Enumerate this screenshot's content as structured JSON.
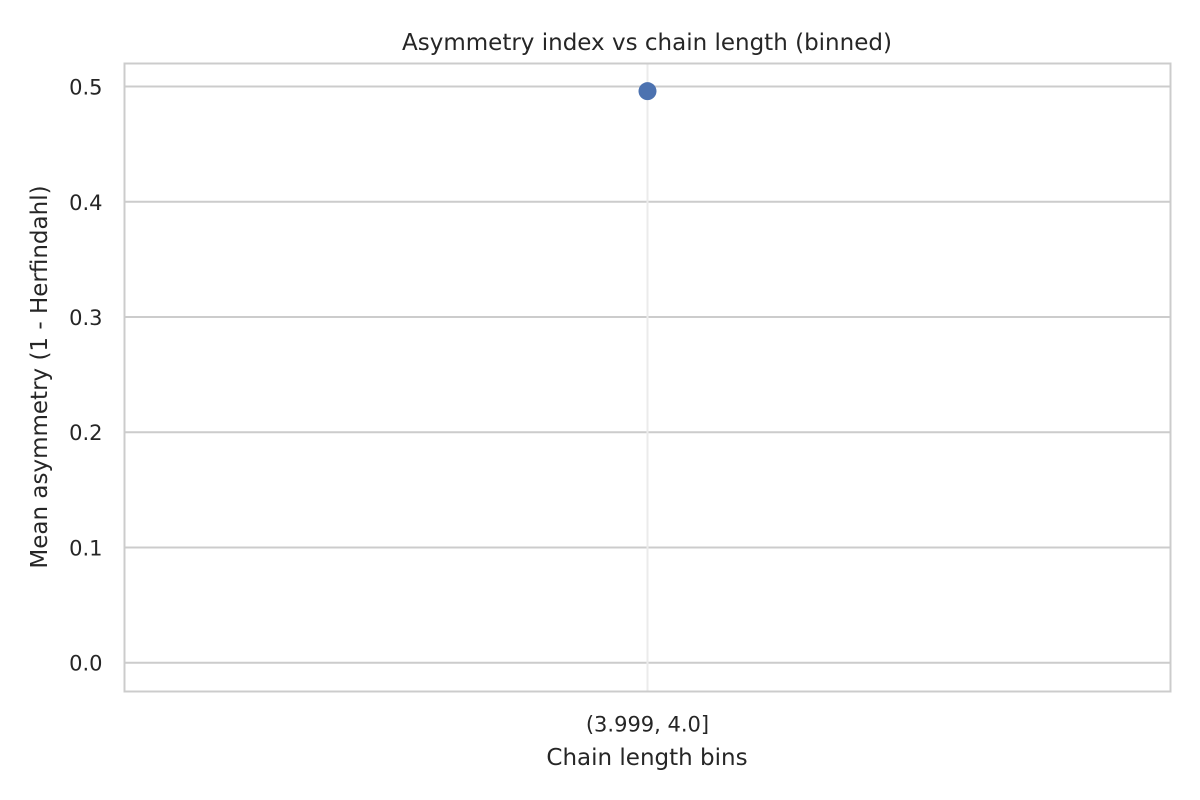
{
  "chart_data": {
    "type": "scatter",
    "title": "Asymmetry index vs chain length (binned)",
    "xlabel": "Chain length bins",
    "ylabel": "Mean asymmetry (1 - Herfindahl)",
    "categories": [
      "(3.999, 4.0]"
    ],
    "series": [
      {
        "values": [
          0.496
        ],
        "color": "#4c72b0"
      }
    ],
    "ylim": [
      -0.025,
      0.52
    ],
    "yticks": [
      0.0,
      0.1,
      0.2,
      0.3,
      0.4,
      0.5
    ],
    "ytick_labels": [
      "0.0",
      "0.1",
      "0.2",
      "0.3",
      "0.4",
      "0.5"
    ],
    "grid": true,
    "legend": "none",
    "colors": {
      "grid": "#cccccc",
      "frame": "#cccccc",
      "text": "#262626",
      "marker": "#4c72b0"
    }
  }
}
